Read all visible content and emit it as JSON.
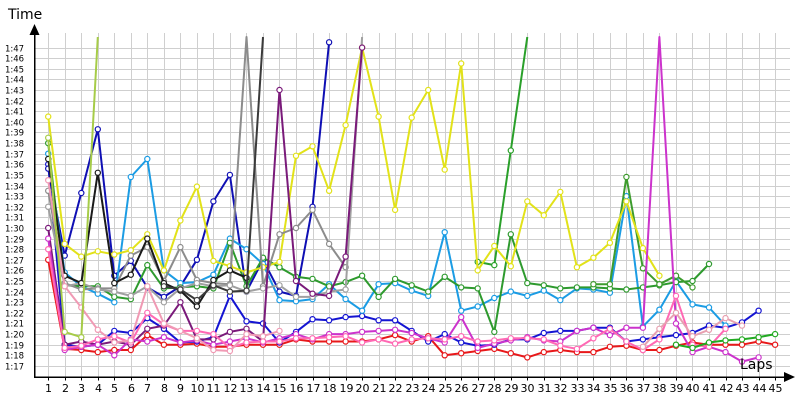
{
  "chart_data": {
    "type": "line",
    "ylabel": "Time",
    "xlabel": "Laps",
    "x": [
      1,
      2,
      3,
      4,
      5,
      6,
      7,
      8,
      9,
      10,
      11,
      12,
      13,
      14,
      15,
      16,
      17,
      18,
      19,
      20,
      21,
      22,
      23,
      24,
      25,
      26,
      27,
      28,
      29,
      30,
      31,
      32,
      33,
      34,
      35,
      36,
      37,
      38,
      39,
      40,
      41,
      42,
      43,
      44,
      45
    ],
    "y_ticks": [
      "1:17",
      "1:18",
      "1:19",
      "1:20",
      "1:21",
      "1:22",
      "1:23",
      "1:24",
      "1:25",
      "1:26",
      "1:27",
      "1:28",
      "1:29",
      "1:30",
      "1:31",
      "1:32",
      "1:33",
      "1:34",
      "1:35",
      "1:36",
      "1:37",
      "1:38",
      "1:39",
      "1:40",
      "1:41",
      "1:42",
      "1:43",
      "1:44",
      "1:45",
      "1:46",
      "1:47"
    ],
    "ylim": [
      76,
      108
    ],
    "xlim": [
      0.2,
      45.6
    ],
    "grid": true,
    "series": [
      {
        "color": "#e8181a",
        "values": [
          87,
          78.6,
          78.5,
          78.3,
          78.5,
          78.5,
          79.9,
          79,
          79,
          79.1,
          78.8,
          78.8,
          79,
          79,
          79,
          79.5,
          79.3,
          79.3,
          79.3,
          79.3,
          79.5,
          79.9,
          79.3,
          79.8,
          78,
          78.2,
          78.4,
          78.6,
          78.2,
          77.8,
          78.3,
          78.5,
          78.3,
          78.3,
          78.8,
          78.9,
          78.5,
          78.5,
          78.9,
          79.2,
          79,
          79,
          79,
          79.3,
          79
        ]
      },
      {
        "color": "#1414d2",
        "values": [
          96,
          79,
          78.8,
          79,
          80.3,
          80.1,
          81.5,
          80.5,
          79.2,
          79.3,
          79.7,
          83.6,
          81.2,
          81,
          79.2,
          80.2,
          81.4,
          81.3,
          81.6,
          81.7,
          81.3,
          81.3,
          80.3,
          79.3,
          80,
          79.2,
          78.9,
          79,
          79.5,
          79.5,
          80.1,
          80.3,
          80.3,
          80.6,
          80.6,
          79.3,
          79.5,
          79.7,
          79.9,
          80.1,
          80.8,
          80.6,
          81.1,
          82.2,
          null
        ]
      },
      {
        "color": "#0f0fb4",
        "values": [
          95.6,
          87.4,
          93.3,
          99.3,
          85.5,
          86.9,
          84.4,
          83.5,
          84.5,
          87,
          92.5,
          95,
          84,
          87,
          84,
          83.6,
          92,
          107.5,
          null,
          null,
          null,
          null,
          null,
          null,
          null,
          null,
          null,
          null,
          null,
          null,
          null,
          null,
          null,
          null,
          null,
          null,
          null,
          null,
          null,
          null,
          null,
          null,
          null,
          null,
          null
        ]
      },
      {
        "color": "#1b9ce4",
        "values": [
          97,
          85.8,
          84.5,
          83.8,
          83,
          94.8,
          96.5,
          86,
          84.8,
          84.9,
          85.6,
          89,
          88,
          86.6,
          83.2,
          83.1,
          83.3,
          84.7,
          83.3,
          82.2,
          84.7,
          84.8,
          84.1,
          83.6,
          89.6,
          82.2,
          82.6,
          83.4,
          84,
          83.6,
          84.1,
          83.2,
          84.3,
          84.2,
          83.9,
          93,
          80.7,
          82.3,
          85,
          82.8,
          82.5,
          80.8,
          null,
          null,
          null
        ]
      },
      {
        "color": "#2e9a2e",
        "values": [
          98,
          84.6,
          84.5,
          84.5,
          83.5,
          83.3,
          86.5,
          84.3,
          84.4,
          84.5,
          84.3,
          88.6,
          84.5,
          87.2,
          86.3,
          85.4,
          85.2,
          84.5,
          84.9,
          85.5,
          83.5,
          85.2,
          84.6,
          84,
          85.4,
          84.4,
          84.3,
          80.2,
          89.4,
          84.8,
          84.6,
          84.3,
          84.4,
          84.4,
          84.3,
          84.2,
          84.4,
          84.6,
          84.9,
          85,
          86.6,
          null,
          null,
          null,
          null
        ]
      },
      {
        "color": "#3e9c2e",
        "values": [
          null,
          null,
          null,
          null,
          null,
          null,
          null,
          null,
          null,
          null,
          null,
          null,
          null,
          null,
          null,
          null,
          null,
          null,
          null,
          null,
          null,
          null,
          null,
          null,
          null,
          null,
          null,
          null,
          null,
          null,
          null,
          null,
          null,
          84.7,
          84.7,
          94.8,
          86.2,
          84.7,
          85.5,
          84.4,
          null,
          null,
          null,
          null,
          null
        ]
      },
      {
        "color": "#2aa02a",
        "values": [
          null,
          null,
          null,
          null,
          null,
          null,
          null,
          null,
          null,
          null,
          null,
          null,
          null,
          null,
          null,
          null,
          null,
          null,
          null,
          null,
          null,
          null,
          null,
          null,
          null,
          null,
          86.8,
          86.5,
          97.3,
          108,
          null,
          null,
          null,
          null,
          null,
          null,
          null,
          null,
          null,
          null,
          null,
          null,
          null,
          null,
          null
        ]
      },
      {
        "color": "#e2e219",
        "values": [
          100.5,
          88.5,
          87.3,
          87.8,
          87.5,
          87.9,
          89.4,
          86,
          90.7,
          93.9,
          86.9,
          86.4,
          85.8,
          86.3,
          86.8,
          96.8,
          97.7,
          93.5,
          99.7,
          107,
          100.5,
          91.7,
          100.4,
          103,
          95.5,
          105.5,
          86,
          88.3,
          86.4,
          92.5,
          91.2,
          93.4,
          86.3,
          87.2,
          88.6,
          92.5,
          88.1,
          85.5,
          null,
          null,
          null,
          null,
          null,
          null,
          null
        ]
      },
      {
        "color": "#8c8c8c",
        "values": [
          93.5,
          84.8,
          84.2,
          84.3,
          84.3,
          87.4,
          88.2,
          85,
          88.2,
          85.1,
          84.8,
          84.7,
          108,
          84.5,
          89.4,
          90,
          91.7,
          88.5,
          86.3,
          null,
          null,
          null,
          null,
          null,
          null,
          null,
          null,
          null,
          null,
          null,
          null,
          null,
          null,
          null,
          null,
          null,
          null,
          null,
          null,
          null,
          null,
          null,
          null,
          null,
          null
        ]
      },
      {
        "color": "#a0a0a0",
        "values": [
          92,
          84.5,
          84.8,
          84.2,
          84,
          83.6,
          84.5,
          83,
          84.3,
          84.8,
          84.5,
          84.6,
          84,
          84.3,
          84.6,
          83.5,
          83.5,
          84,
          84.2,
          108,
          null,
          null,
          null,
          null,
          null,
          null,
          null,
          null,
          null,
          null,
          null,
          null,
          null,
          null,
          null,
          null,
          null,
          null,
          null,
          null,
          null,
          null,
          null,
          null,
          null
        ]
      },
      {
        "color": "#1a1a1a",
        "values": [
          96.5,
          85.5,
          84.8,
          95.2,
          84.8,
          85.6,
          89,
          84.8,
          84.1,
          82.6,
          85.1,
          86,
          85.3,
          null,
          null,
          null,
          null,
          null,
          null,
          null,
          null,
          null,
          null,
          null,
          null,
          null,
          null,
          null,
          null,
          null,
          null,
          null,
          null,
          null,
          null,
          null,
          null,
          null,
          null,
          null,
          null,
          null,
          null,
          null,
          null
        ]
      },
      {
        "color": "#3a3a3a",
        "values": [
          null,
          null,
          null,
          null,
          null,
          null,
          null,
          84.5,
          84.2,
          83.2,
          84.6,
          84,
          84.1,
          108,
          null,
          null,
          null,
          null,
          null,
          null,
          null,
          null,
          null,
          null,
          null,
          null,
          null,
          null,
          null,
          null,
          null,
          null,
          null,
          null,
          null,
          null,
          null,
          null,
          null,
          null,
          null,
          null,
          null,
          null,
          null
        ]
      },
      {
        "color": "#7a1a7a",
        "values": [
          90,
          79,
          79.3,
          79,
          79.3,
          79,
          80.5,
          80.8,
          83,
          79.5,
          79.5,
          80.2,
          80.5,
          79.3,
          103,
          85,
          83.8,
          83.6,
          87.3,
          107,
          null,
          null,
          null,
          null,
          null,
          null,
          null,
          null,
          null,
          null,
          null,
          null,
          null,
          null,
          null,
          null,
          null,
          null,
          null,
          null,
          null,
          null,
          null,
          null,
          null
        ]
      },
      {
        "color": "#cc33cc",
        "values": [
          89,
          78.5,
          78.8,
          79,
          78,
          79.5,
          79.3,
          79.7,
          79.2,
          79.4,
          79,
          79.3,
          79.6,
          79.2,
          79.6,
          80,
          79.5,
          80,
          80,
          80.2,
          80.3,
          80.4,
          80.1,
          79.6,
          79.2,
          81.6,
          78.7,
          79.1,
          79.4,
          79.7,
          79.4,
          79.3,
          80.3,
          80.6,
          79.9,
          80.6,
          80.6,
          108,
          81,
          78.3,
          78.8,
          78.3,
          77.4,
          77.8,
          null
        ]
      },
      {
        "color": "#ff69b4",
        "values": [
          88,
          78.7,
          78.9,
          79.5,
          79.8,
          79.2,
          82,
          80.9,
          80.3,
          80.3,
          80,
          78.7,
          79.2,
          79.3,
          79.3,
          79.6,
          79.6,
          79.7,
          79.8,
          79.2,
          79.5,
          79.1,
          79.5,
          79.6,
          79.5,
          79.8,
          79.3,
          79.4,
          79.6,
          79.6,
          79.5,
          78.9,
          78.6,
          79.6,
          80.5,
          79.3,
          78.5,
          79.5,
          83.6,
          79,
          78.8,
          80.5,
          null,
          null,
          null
        ]
      },
      {
        "color": "#ff8fc8",
        "values": [
          null,
          null,
          null,
          null,
          108,
          null,
          null,
          null,
          null,
          null,
          null,
          null,
          null,
          null,
          null,
          null,
          null,
          null,
          null,
          null,
          null,
          null,
          null,
          null,
          null,
          null,
          null,
          null,
          null,
          null,
          null,
          null,
          null,
          null,
          null,
          null,
          null,
          null,
          null,
          null,
          null,
          null,
          null,
          null,
          null
        ]
      },
      {
        "color": "#f09ab4",
        "values": [
          94.5,
          84.5,
          82.5,
          80.4,
          79.2,
          79.4,
          84.5,
          81,
          80.3,
          79.6,
          78.5,
          78.4,
          80,
          79.8,
          80.3,
          null,
          null,
          null,
          null,
          null,
          null,
          null,
          null,
          null,
          null,
          null,
          null,
          null,
          null,
          null,
          null,
          null,
          null,
          null,
          null,
          null,
          null,
          null,
          null,
          null,
          null,
          null,
          null,
          null,
          null
        ]
      },
      {
        "color": "#e7a0b0",
        "values": [
          null,
          null,
          null,
          null,
          null,
          null,
          null,
          null,
          null,
          null,
          null,
          null,
          null,
          null,
          null,
          null,
          null,
          null,
          null,
          null,
          null,
          null,
          null,
          null,
          null,
          null,
          null,
          null,
          null,
          null,
          null,
          null,
          null,
          null,
          null,
          null,
          78.8,
          80.5,
          82,
          79.8,
          80.4,
          81.5,
          80.8,
          null,
          null
        ]
      },
      {
        "color": "#a6cc48",
        "values": [
          98.5,
          80.2,
          79.7,
          108,
          null,
          null,
          null,
          null,
          null,
          null,
          null,
          null,
          null,
          null,
          null,
          null,
          null,
          null,
          null,
          null,
          null,
          null,
          null,
          null,
          null,
          null,
          null,
          null,
          null,
          null,
          null,
          null,
          null,
          null,
          null,
          null,
          null,
          null,
          null,
          null,
          null,
          null,
          null,
          null,
          null
        ]
      },
      {
        "color": "#d7d7d7",
        "values": [
          null,
          null,
          null,
          null,
          null,
          null,
          null,
          null,
          null,
          null,
          null,
          null,
          null,
          null,
          null,
          null,
          null,
          null,
          null,
          null,
          null,
          null,
          null,
          null,
          null,
          null,
          null,
          null,
          null,
          null,
          null,
          null,
          null,
          null,
          null,
          null,
          null,
          null,
          null,
          null,
          null,
          null,
          null,
          null,
          null
        ]
      },
      {
        "color": "#dc1a1a",
        "values": [
          null,
          null,
          null,
          null,
          null,
          null,
          null,
          null,
          null,
          null,
          null,
          null,
          null,
          null,
          null,
          null,
          null,
          null,
          null,
          108,
          null,
          null,
          null,
          null,
          null,
          null,
          null,
          null,
          null,
          null,
          null,
          null,
          null,
          null,
          null,
          null,
          null,
          null,
          null,
          null,
          null,
          null,
          null,
          null,
          null
        ]
      },
      {
        "color": "#22aa22",
        "values": [
          null,
          null,
          null,
          null,
          null,
          null,
          null,
          null,
          null,
          null,
          null,
          null,
          null,
          null,
          null,
          null,
          null,
          null,
          null,
          null,
          null,
          null,
          null,
          null,
          null,
          null,
          null,
          null,
          null,
          null,
          null,
          null,
          null,
          null,
          null,
          null,
          null,
          null,
          79,
          78.7,
          79.2,
          79.4,
          79.5,
          79.7,
          80
        ]
      }
    ]
  }
}
